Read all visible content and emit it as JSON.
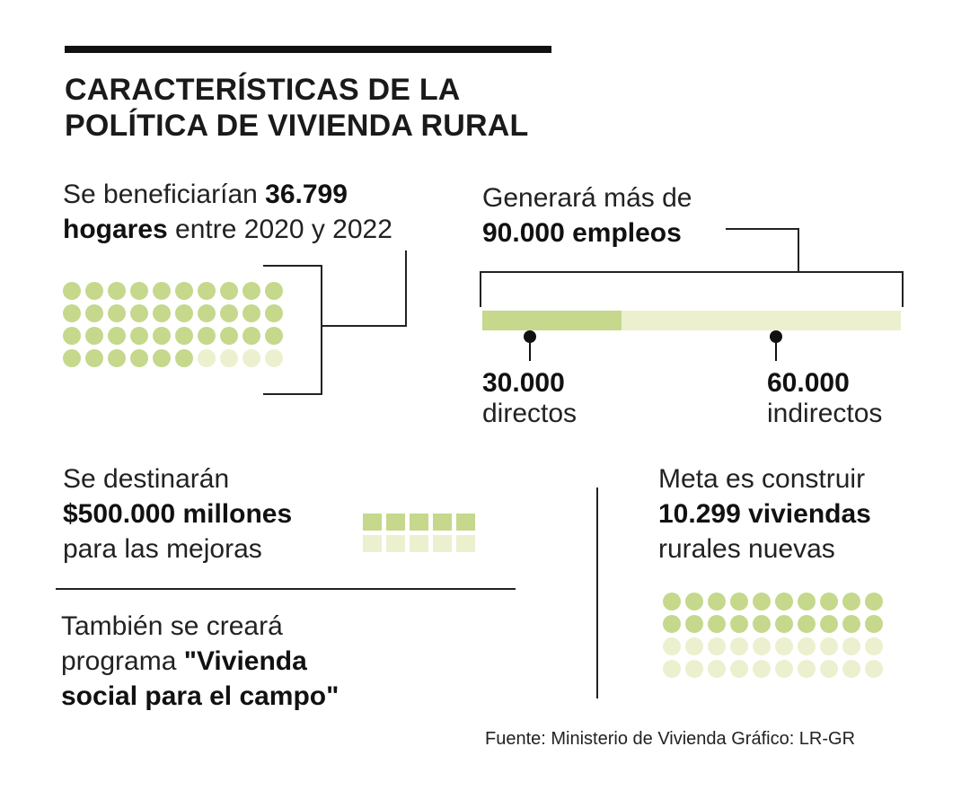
{
  "title_line1": "CARACTERÍSTICAS DE LA",
  "title_line2": "POLÍTICA DE VIVIENDA RURAL",
  "hogares": {
    "pre": "Se beneficiarían ",
    "bold1": "36.799",
    "bold2": "hogares",
    "post": " entre 2020 y 2022"
  },
  "empleos": {
    "line1": "Generará más de",
    "line2": "90.000 empleos",
    "directos_value": "30.000",
    "directos_label": "directos",
    "indirectos_value": "60.000",
    "indirectos_label": "indirectos"
  },
  "mejoras": {
    "line1": "Se destinarán",
    "line2": "$500.000 millones",
    "line3": "para las mejoras"
  },
  "programa": {
    "line1": "También se creará",
    "line2_pre": "programa ",
    "line2_bold": "\"Vivienda",
    "line3": "social para el campo\""
  },
  "viviendas": {
    "line1": "Meta es construir",
    "line2": "10.299 viviendas",
    "line3": "rurales nuevas"
  },
  "source": "Fuente: Ministerio de Vivienda   Gráfico: LR-GR",
  "colors": {
    "filled": "#c5d88c",
    "empty": "#ecf0cf",
    "ink": "#111111"
  },
  "chart_data": [
    {
      "type": "bar",
      "categories": [
        "directos",
        "indirectos"
      ],
      "values": [
        30000,
        60000
      ],
      "total": 90000,
      "title": "90.000 empleos"
    },
    {
      "type": "table",
      "title": "36.799 hogares",
      "icons_total": 40,
      "icons_filled": 36
    },
    {
      "type": "table",
      "title": "$500.000 millones",
      "cells_total": 10,
      "cells_filled": 5
    },
    {
      "type": "table",
      "title": "10.299 viviendas",
      "icons_total": 40,
      "icons_filled": 20
    }
  ]
}
